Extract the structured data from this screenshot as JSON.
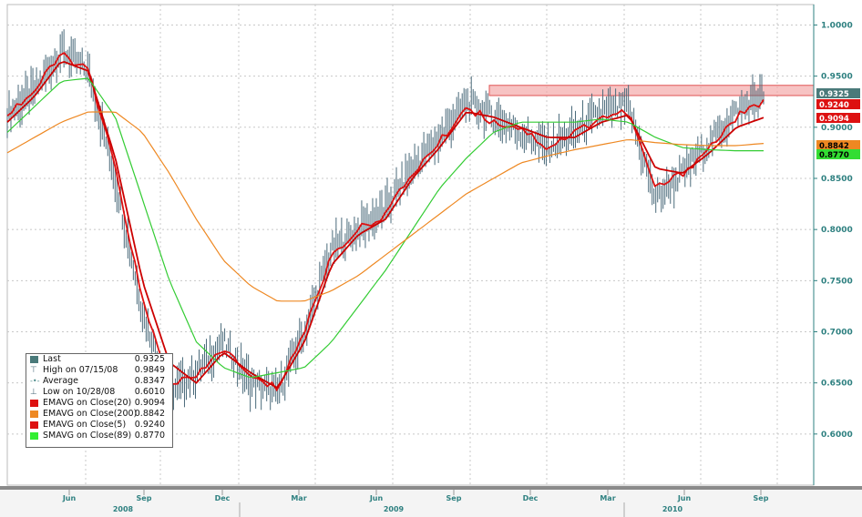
{
  "chart_data": {
    "type": "line",
    "title": "",
    "y_axis": {
      "ticks": [
        "1.0000",
        "0.9500",
        "0.9000",
        "0.8500",
        "0.8000",
        "0.7500",
        "0.7000",
        "0.6500",
        "0.6000"
      ],
      "range": [
        0.55,
        1.02
      ],
      "side": "right"
    },
    "x_axis": {
      "months": [
        "Jun",
        "Sep",
        "Dec",
        "Mar",
        "Jun",
        "Sep",
        "Dec",
        "Mar",
        "Jun",
        "Sep"
      ],
      "years": [
        "2008",
        "2009",
        "2010"
      ]
    },
    "x_dates": [
      "2008-03",
      "2008-05",
      "2008-07",
      "2008-08",
      "2008-09",
      "2008-10",
      "2008-11",
      "2008-12",
      "2009-01",
      "2009-02",
      "2009-03",
      "2009-04",
      "2009-05",
      "2009-06",
      "2009-07",
      "2009-08",
      "2009-09",
      "2009-10",
      "2009-11",
      "2009-12",
      "2010-01",
      "2010-02",
      "2010-03",
      "2010-04",
      "2010-05",
      "2010-06",
      "2010-07",
      "2010-08",
      "2010-09"
    ],
    "series": [
      {
        "name": "Last",
        "color": "#4a6a7a",
        "style": "ohlc-bars",
        "values": [
          0.913,
          0.935,
          0.975,
          0.955,
          0.85,
          0.72,
          0.64,
          0.66,
          0.69,
          0.65,
          0.64,
          0.7,
          0.78,
          0.8,
          0.82,
          0.86,
          0.89,
          0.925,
          0.91,
          0.895,
          0.88,
          0.895,
          0.915,
          0.92,
          0.83,
          0.855,
          0.885,
          0.915,
          0.9325
        ]
      },
      {
        "name": "EMAVG on Close(5)",
        "color": "#dd1111",
        "values": [
          0.913,
          0.935,
          0.972,
          0.955,
          0.86,
          0.73,
          0.65,
          0.655,
          0.685,
          0.655,
          0.645,
          0.7,
          0.775,
          0.8,
          0.815,
          0.855,
          0.885,
          0.92,
          0.905,
          0.9,
          0.88,
          0.895,
          0.91,
          0.915,
          0.84,
          0.855,
          0.88,
          0.91,
          0.924
        ]
      },
      {
        "name": "EMAVG on Close(20)",
        "color": "#cc0000",
        "values": [
          0.905,
          0.93,
          0.965,
          0.955,
          0.87,
          0.75,
          0.67,
          0.65,
          0.68,
          0.66,
          0.645,
          0.69,
          0.765,
          0.795,
          0.81,
          0.85,
          0.88,
          0.915,
          0.91,
          0.9,
          0.89,
          0.89,
          0.905,
          0.912,
          0.86,
          0.855,
          0.875,
          0.9,
          0.9094
        ]
      },
      {
        "name": "SMAVG on Close(89)",
        "color": "#33cc33",
        "values": [
          0.895,
          0.92,
          0.945,
          0.948,
          0.91,
          0.83,
          0.75,
          0.69,
          0.665,
          0.655,
          0.66,
          0.665,
          0.69,
          0.725,
          0.76,
          0.8,
          0.84,
          0.87,
          0.895,
          0.905,
          0.905,
          0.905,
          0.908,
          0.905,
          0.89,
          0.88,
          0.878,
          0.877,
          0.877
        ]
      },
      {
        "name": "EMAVG on Close(200)",
        "color": "#ee8822",
        "values": [
          0.875,
          0.89,
          0.905,
          0.915,
          0.915,
          0.895,
          0.855,
          0.81,
          0.77,
          0.745,
          0.73,
          0.73,
          0.74,
          0.755,
          0.775,
          0.795,
          0.815,
          0.835,
          0.85,
          0.865,
          0.872,
          0.878,
          0.883,
          0.888,
          0.885,
          0.883,
          0.882,
          0.882,
          0.8842
        ]
      }
    ],
    "legend": {
      "position": "bottom-left",
      "entries": [
        {
          "label": "Last",
          "value": "0.9325",
          "color": "#4a7a7a",
          "symbol": "square"
        },
        {
          "label": "High on 07/15/08",
          "value": "0.9849",
          "color": "#4a6a7a",
          "symbol": "high"
        },
        {
          "label": "Average",
          "value": "0.8347",
          "color": "#4a8a8a",
          "symbol": "avg"
        },
        {
          "label": "Low on 10/28/08",
          "value": "0.6010",
          "color": "#4a6a7a",
          "symbol": "low"
        },
        {
          "label": "EMAVG on Close(20)",
          "value": "0.9094",
          "color": "#dd1111",
          "symbol": "square"
        },
        {
          "label": "EMAVG on Close(200)",
          "value": "0.8842",
          "color": "#ee8822",
          "symbol": "square"
        },
        {
          "label": "EMAVG on Close(5)",
          "value": "0.9240",
          "color": "#dd1111",
          "symbol": "square"
        },
        {
          "label": "SMAVG on Close(89)",
          "value": "0.8770",
          "color": "#33ee33",
          "symbol": "square"
        }
      ]
    },
    "price_tags": [
      {
        "text": "0.9325",
        "value": 0.9325,
        "bg": "#4a7a7a",
        "fg": "#ffffff"
      },
      {
        "text": "0.9240",
        "value": 0.924,
        "bg": "#dd1111",
        "fg": "#ffffff"
      },
      {
        "text": "0.9094",
        "value": 0.9094,
        "bg": "#dd1111",
        "fg": "#ffffff"
      },
      {
        "text": "0.8842",
        "value": 0.8842,
        "bg": "#ee8822",
        "fg": "#000000"
      },
      {
        "text": "0.8770",
        "value": 0.877,
        "bg": "#33dd33",
        "fg": "#000000"
      }
    ],
    "resistance_band": {
      "from": 0.931,
      "to": 0.941,
      "color": "#f4aaaa"
    },
    "grid": true
  }
}
